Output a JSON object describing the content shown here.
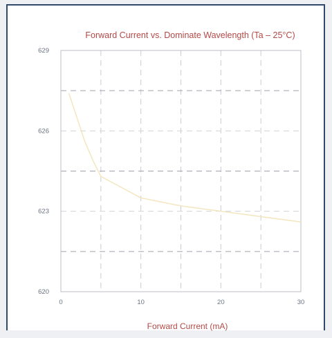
{
  "chart_data": {
    "type": "line",
    "title": "Forward Current vs. Dominate Wavelength (Ta – 25°C)",
    "xlabel": "Forward Current (mA)",
    "ylabel": "",
    "xlim": [
      0,
      30
    ],
    "ylim": [
      620,
      629
    ],
    "x_ticks": [
      0,
      10,
      20,
      30
    ],
    "y_ticks": [
      620,
      623,
      626,
      629
    ],
    "x_gridlines": [
      5,
      10,
      15,
      20,
      25
    ],
    "y_gridlines": [
      621.5,
      623,
      624.5,
      626,
      627.5
    ],
    "grid": true,
    "series": [
      {
        "color": "#f3e6bf",
        "x": [
          1,
          2,
          3,
          4,
          5,
          7.5,
          10,
          15,
          20,
          25,
          30
        ],
        "y": [
          627.4,
          626.5,
          625.6,
          624.9,
          624.3,
          623.9,
          623.5,
          623.2,
          623.0,
          622.8,
          622.6
        ]
      }
    ]
  }
}
